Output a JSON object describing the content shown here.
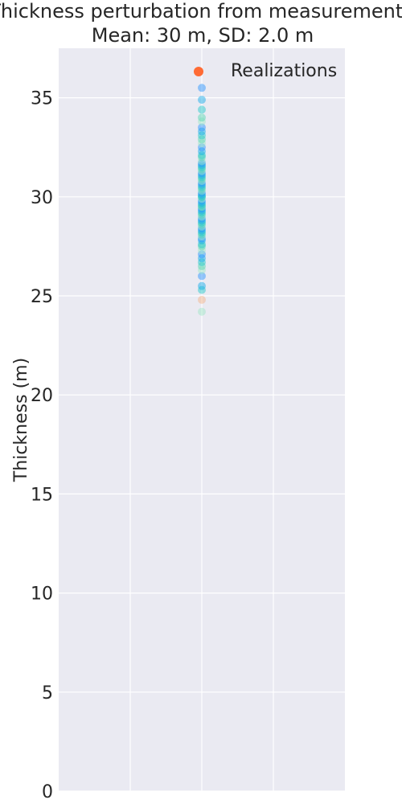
{
  "chart_data": {
    "type": "scatter",
    "title": [
      "Thickness perturbation from measurements",
      "Mean: 30 m, SD: 2.0 m"
    ],
    "ylabel": "Thickness (m)",
    "xlabel": "",
    "ylim": [
      0,
      37.5
    ],
    "xlim": [
      -1,
      1
    ],
    "yticks": [
      0,
      5,
      10,
      15,
      20,
      25,
      30,
      35
    ],
    "xgrid": [
      -0.5,
      0,
      0.5
    ],
    "grid": true,
    "legend": {
      "placement": "top-right",
      "entries": [
        {
          "label": "Realizations",
          "color": "#ff6b35"
        }
      ]
    },
    "colors": {
      "plot_bg": "#eaeaf2",
      "grid": "#ffffff",
      "legend_marker": "#ff6b35"
    },
    "series": [
      {
        "x": 0,
        "point_colors": [
          "#9be7c4",
          "#4fd8b0",
          "#19c8c8",
          "#0aa8e8",
          "#1e90ff",
          "#f4b183"
        ],
        "values": [
          24.2,
          24.8,
          25.3,
          25.5,
          26.0,
          26.3,
          26.5,
          26.7,
          26.9,
          27.1,
          27.3,
          27.5,
          27.6,
          27.8,
          27.9,
          28.0,
          28.1,
          28.2,
          28.3,
          28.4,
          28.5,
          28.6,
          28.7,
          28.8,
          28.9,
          29.0,
          29.1,
          29.2,
          29.3,
          29.4,
          29.5,
          29.5,
          29.6,
          29.7,
          29.8,
          29.9,
          30.0,
          30.0,
          30.1,
          30.2,
          30.3,
          30.4,
          30.5,
          30.6,
          30.7,
          30.8,
          30.9,
          31.0,
          31.1,
          31.2,
          31.3,
          31.4,
          31.5,
          31.6,
          31.7,
          31.8,
          32.0,
          32.1,
          32.3,
          32.5,
          32.7,
          32.9,
          33.1,
          33.3,
          33.5,
          33.8,
          34.0,
          34.4,
          34.9,
          35.5
        ]
      }
    ]
  }
}
